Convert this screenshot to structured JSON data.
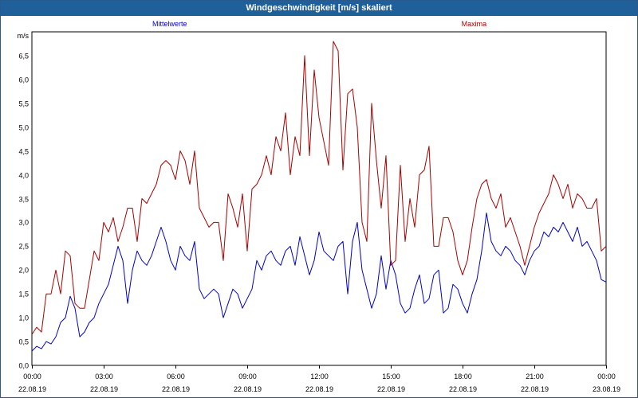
{
  "window": {
    "title": "Windgeschwindigkeit [m/s] skaliert"
  },
  "chart_data": {
    "type": "line",
    "title": "Windgeschwindigkeit [m/s] skaliert",
    "ylabel": "m/s",
    "ylim": [
      0,
      7.0
    ],
    "yticks": [
      0,
      0.5,
      1.0,
      1.5,
      2.0,
      2.5,
      3.0,
      3.5,
      4.0,
      4.5,
      5.0,
      5.5,
      6.0,
      6.5
    ],
    "ytick_labels": [
      "0,0",
      "0,5",
      "1,0",
      "1,5",
      "2,0",
      "2,5",
      "3,0",
      "3,5",
      "4,0",
      "4,5",
      "5,0",
      "5,5",
      "6,0",
      "6,5"
    ],
    "xlim_hours": [
      0,
      24
    ],
    "xticks_hours": [
      0,
      3,
      6,
      9,
      12,
      15,
      18,
      21,
      24
    ],
    "xtick_labels": [
      {
        "time": "00:00",
        "date": "22.08.19"
      },
      {
        "time": "03:00",
        "date": "22.08.19"
      },
      {
        "time": "06:00",
        "date": "22.08.19"
      },
      {
        "time": "09:00",
        "date": "22.08.19"
      },
      {
        "time": "12:00",
        "date": "22.08.19"
      },
      {
        "time": "15:00",
        "date": "22.08.19"
      },
      {
        "time": "18:00",
        "date": "22.08.19"
      },
      {
        "time": "21:00",
        "date": "22.08.19"
      },
      {
        "time": "00:00",
        "date": "23.08.19"
      }
    ],
    "grid": true,
    "series": [
      {
        "name": "Mittelwerte",
        "color": "#0000cc",
        "points": [
          [
            0,
            0.3
          ],
          [
            0.2,
            0.4
          ],
          [
            0.4,
            0.35
          ],
          [
            0.6,
            0.5
          ],
          [
            0.8,
            0.45
          ],
          [
            1.0,
            0.6
          ],
          [
            1.2,
            0.9
          ],
          [
            1.4,
            1.0
          ],
          [
            1.6,
            1.45
          ],
          [
            1.8,
            1.2
          ],
          [
            2.0,
            0.6
          ],
          [
            2.2,
            0.7
          ],
          [
            2.4,
            0.9
          ],
          [
            2.6,
            1.0
          ],
          [
            2.8,
            1.3
          ],
          [
            3.0,
            1.5
          ],
          [
            3.2,
            1.7
          ],
          [
            3.4,
            2.1
          ],
          [
            3.6,
            2.5
          ],
          [
            3.8,
            2.2
          ],
          [
            4.0,
            1.3
          ],
          [
            4.2,
            2.0
          ],
          [
            4.4,
            2.4
          ],
          [
            4.6,
            2.2
          ],
          [
            4.8,
            2.1
          ],
          [
            5.0,
            2.3
          ],
          [
            5.2,
            2.6
          ],
          [
            5.4,
            2.9
          ],
          [
            5.6,
            2.6
          ],
          [
            5.8,
            2.2
          ],
          [
            6.0,
            2.0
          ],
          [
            6.2,
            2.5
          ],
          [
            6.4,
            2.3
          ],
          [
            6.6,
            2.2
          ],
          [
            6.8,
            2.6
          ],
          [
            7.0,
            1.6
          ],
          [
            7.2,
            1.4
          ],
          [
            7.4,
            1.5
          ],
          [
            7.6,
            1.6
          ],
          [
            7.8,
            1.5
          ],
          [
            8.0,
            1.0
          ],
          [
            8.2,
            1.3
          ],
          [
            8.4,
            1.6
          ],
          [
            8.6,
            1.5
          ],
          [
            8.8,
            1.2
          ],
          [
            9.0,
            1.4
          ],
          [
            9.2,
            1.6
          ],
          [
            9.4,
            2.2
          ],
          [
            9.6,
            2.0
          ],
          [
            9.8,
            2.3
          ],
          [
            10.0,
            2.4
          ],
          [
            10.2,
            2.2
          ],
          [
            10.4,
            2.1
          ],
          [
            10.6,
            2.4
          ],
          [
            10.8,
            2.5
          ],
          [
            11.0,
            2.1
          ],
          [
            11.2,
            2.7
          ],
          [
            11.4,
            2.3
          ],
          [
            11.6,
            1.9
          ],
          [
            11.8,
            2.2
          ],
          [
            12.0,
            2.8
          ],
          [
            12.2,
            2.4
          ],
          [
            12.4,
            2.3
          ],
          [
            12.6,
            2.2
          ],
          [
            12.8,
            2.5
          ],
          [
            13.0,
            2.6
          ],
          [
            13.2,
            1.5
          ],
          [
            13.4,
            2.6
          ],
          [
            13.6,
            3.0
          ],
          [
            13.8,
            2.0
          ],
          [
            14.0,
            1.6
          ],
          [
            14.2,
            1.2
          ],
          [
            14.4,
            1.5
          ],
          [
            14.6,
            2.3
          ],
          [
            14.8,
            1.6
          ],
          [
            15.0,
            2.2
          ],
          [
            15.2,
            1.9
          ],
          [
            15.4,
            1.3
          ],
          [
            15.6,
            1.1
          ],
          [
            15.8,
            1.2
          ],
          [
            16.0,
            1.6
          ],
          [
            16.2,
            1.9
          ],
          [
            16.4,
            1.3
          ],
          [
            16.6,
            1.4
          ],
          [
            16.8,
            1.9
          ],
          [
            17.0,
            2.0
          ],
          [
            17.2,
            1.1
          ],
          [
            17.4,
            1.2
          ],
          [
            17.6,
            1.7
          ],
          [
            17.8,
            1.6
          ],
          [
            18.0,
            1.3
          ],
          [
            18.2,
            1.1
          ],
          [
            18.4,
            1.5
          ],
          [
            18.6,
            1.8
          ],
          [
            18.8,
            2.4
          ],
          [
            19.0,
            3.2
          ],
          [
            19.2,
            2.6
          ],
          [
            19.4,
            2.4
          ],
          [
            19.6,
            2.3
          ],
          [
            19.8,
            2.5
          ],
          [
            20.0,
            2.4
          ],
          [
            20.2,
            2.2
          ],
          [
            20.4,
            2.1
          ],
          [
            20.6,
            1.9
          ],
          [
            20.8,
            2.2
          ],
          [
            21.0,
            2.4
          ],
          [
            21.2,
            2.5
          ],
          [
            21.4,
            2.8
          ],
          [
            21.6,
            2.7
          ],
          [
            21.8,
            2.9
          ],
          [
            22.0,
            2.8
          ],
          [
            22.2,
            3.0
          ],
          [
            22.4,
            2.8
          ],
          [
            22.6,
            2.6
          ],
          [
            22.8,
            2.9
          ],
          [
            23.0,
            2.5
          ],
          [
            23.2,
            2.6
          ],
          [
            23.4,
            2.4
          ],
          [
            23.6,
            2.2
          ],
          [
            23.8,
            1.8
          ],
          [
            24.0,
            1.75
          ]
        ]
      },
      {
        "name": "Maxima",
        "color": "#aa0000",
        "points": [
          [
            0,
            0.65
          ],
          [
            0.2,
            0.8
          ],
          [
            0.4,
            0.7
          ],
          [
            0.6,
            1.5
          ],
          [
            0.8,
            1.5
          ],
          [
            1.0,
            2.0
          ],
          [
            1.2,
            1.5
          ],
          [
            1.4,
            2.4
          ],
          [
            1.6,
            2.3
          ],
          [
            1.8,
            1.3
          ],
          [
            2.0,
            1.2
          ],
          [
            2.2,
            1.2
          ],
          [
            2.4,
            1.8
          ],
          [
            2.6,
            2.4
          ],
          [
            2.8,
            2.2
          ],
          [
            3.0,
            3.0
          ],
          [
            3.2,
            2.8
          ],
          [
            3.4,
            3.1
          ],
          [
            3.6,
            2.6
          ],
          [
            3.8,
            2.9
          ],
          [
            4.0,
            3.3
          ],
          [
            4.2,
            3.3
          ],
          [
            4.4,
            2.6
          ],
          [
            4.6,
            3.5
          ],
          [
            4.8,
            3.4
          ],
          [
            5.0,
            3.6
          ],
          [
            5.2,
            3.8
          ],
          [
            5.4,
            4.2
          ],
          [
            5.6,
            4.3
          ],
          [
            5.8,
            4.2
          ],
          [
            6.0,
            3.9
          ],
          [
            6.2,
            4.5
          ],
          [
            6.4,
            4.3
          ],
          [
            6.6,
            3.8
          ],
          [
            6.8,
            4.5
          ],
          [
            7.0,
            3.3
          ],
          [
            7.2,
            3.1
          ],
          [
            7.4,
            2.9
          ],
          [
            7.6,
            3.0
          ],
          [
            7.8,
            3.0
          ],
          [
            8.0,
            2.2
          ],
          [
            8.2,
            3.6
          ],
          [
            8.4,
            3.3
          ],
          [
            8.6,
            2.9
          ],
          [
            8.8,
            3.6
          ],
          [
            9.0,
            2.4
          ],
          [
            9.2,
            3.7
          ],
          [
            9.4,
            3.8
          ],
          [
            9.6,
            4.0
          ],
          [
            9.8,
            4.4
          ],
          [
            10.0,
            4.0
          ],
          [
            10.2,
            4.8
          ],
          [
            10.4,
            4.5
          ],
          [
            10.6,
            5.3
          ],
          [
            10.8,
            4.0
          ],
          [
            11.0,
            4.8
          ],
          [
            11.2,
            4.4
          ],
          [
            11.4,
            6.5
          ],
          [
            11.6,
            4.4
          ],
          [
            11.8,
            6.2
          ],
          [
            12.0,
            5.2
          ],
          [
            12.2,
            4.7
          ],
          [
            12.4,
            4.2
          ],
          [
            12.6,
            6.8
          ],
          [
            12.8,
            6.6
          ],
          [
            13.0,
            4.1
          ],
          [
            13.2,
            5.7
          ],
          [
            13.4,
            5.8
          ],
          [
            13.6,
            5.0
          ],
          [
            13.8,
            3.0
          ],
          [
            14.0,
            2.6
          ],
          [
            14.2,
            5.5
          ],
          [
            14.4,
            4.3
          ],
          [
            14.6,
            3.3
          ],
          [
            14.8,
            4.4
          ],
          [
            15.0,
            2.1
          ],
          [
            15.2,
            2.2
          ],
          [
            15.4,
            4.2
          ],
          [
            15.6,
            2.6
          ],
          [
            15.8,
            3.5
          ],
          [
            16.0,
            2.9
          ],
          [
            16.2,
            4.0
          ],
          [
            16.4,
            4.1
          ],
          [
            16.6,
            4.6
          ],
          [
            16.8,
            2.5
          ],
          [
            17.0,
            2.5
          ],
          [
            17.2,
            3.1
          ],
          [
            17.4,
            3.1
          ],
          [
            17.6,
            2.8
          ],
          [
            17.8,
            2.2
          ],
          [
            18.0,
            1.9
          ],
          [
            18.2,
            2.2
          ],
          [
            18.4,
            2.9
          ],
          [
            18.6,
            3.5
          ],
          [
            18.8,
            3.8
          ],
          [
            19.0,
            3.9
          ],
          [
            19.2,
            3.5
          ],
          [
            19.4,
            3.3
          ],
          [
            19.6,
            3.6
          ],
          [
            19.8,
            2.9
          ],
          [
            20.0,
            3.1
          ],
          [
            20.2,
            2.8
          ],
          [
            20.4,
            2.5
          ],
          [
            20.6,
            2.1
          ],
          [
            20.8,
            2.5
          ],
          [
            21.0,
            2.9
          ],
          [
            21.2,
            3.2
          ],
          [
            21.4,
            3.4
          ],
          [
            21.6,
            3.6
          ],
          [
            21.8,
            4.0
          ],
          [
            22.0,
            3.8
          ],
          [
            22.2,
            3.5
          ],
          [
            22.4,
            3.8
          ],
          [
            22.6,
            3.3
          ],
          [
            22.8,
            3.6
          ],
          [
            23.0,
            3.5
          ],
          [
            23.2,
            3.3
          ],
          [
            23.4,
            3.3
          ],
          [
            23.6,
            3.5
          ],
          [
            23.8,
            2.4
          ],
          [
            24.0,
            2.5
          ]
        ]
      }
    ]
  }
}
